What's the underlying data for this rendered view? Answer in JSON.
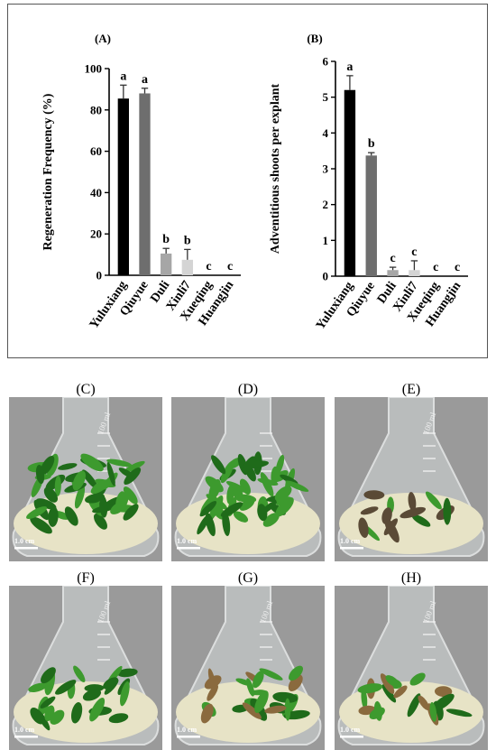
{
  "chart_data": [
    {
      "type": "bar",
      "panel_label": "(A)",
      "categories": [
        "Yuluxiang",
        "Qiuyue",
        "Duli",
        "Xinli7",
        "Xueqing",
        "Huangjin"
      ],
      "values": [
        85.5,
        88,
        10.5,
        7.5,
        0,
        0
      ],
      "errors": [
        6.5,
        2.5,
        2.5,
        5,
        0,
        0
      ],
      "letters": [
        "a",
        "a",
        "b",
        "b",
        "c",
        "c"
      ],
      "colors": [
        "#000000",
        "#6e6e6e",
        "#a6a6a6",
        "#d4d4d4",
        "#d4d4d4",
        "#d4d4d4"
      ],
      "title": "",
      "xlabel": "",
      "ylabel": "Regeneration Frequency (%)",
      "ylim": [
        0,
        100
      ],
      "yticks": [
        "0",
        "20",
        "40",
        "60",
        "80",
        "100"
      ]
    },
    {
      "type": "bar",
      "panel_label": "(B)",
      "categories": [
        "Yuluxiang",
        "Qiuyue",
        "Duli",
        "Xinli7",
        "Xueqing",
        "Huangjin"
      ],
      "values": [
        5.2,
        3.37,
        0.17,
        0.17,
        0,
        0
      ],
      "errors": [
        0.4,
        0.08,
        0.08,
        0.26,
        0,
        0
      ],
      "letters": [
        "a",
        "b",
        "c",
        "c",
        "c",
        "c"
      ],
      "colors": [
        "#000000",
        "#6e6e6e",
        "#a6a6a6",
        "#d4d4d4",
        "#d4d4d4",
        "#d4d4d4"
      ],
      "title": "",
      "xlabel": "",
      "ylabel": "Adventitious shoots per explant",
      "ylim": [
        0,
        6
      ],
      "yticks": [
        "0",
        "1",
        "2",
        "3",
        "4",
        "5",
        "6"
      ]
    }
  ],
  "photos": [
    {
      "label": "(C)",
      "scale": "1.0 cm",
      "style": "dense",
      "flask_text": "100 ml"
    },
    {
      "label": "(D)",
      "scale": "1.0 cm",
      "style": "dense",
      "flask_text": ""
    },
    {
      "label": "(E)",
      "scale": "1.0 cm",
      "style": "sparse",
      "flask_text": "100 ml"
    },
    {
      "label": "(F)",
      "scale": "1.0 cm",
      "style": "medium",
      "flask_text": "100 ml"
    },
    {
      "label": "(G)",
      "scale": "1.0 cm",
      "style": "medium",
      "flask_text": "100 ml"
    },
    {
      "label": "(H)",
      "scale": "1.0 cm",
      "style": "brown",
      "flask_text": "100 ml"
    }
  ],
  "colors": {
    "leaf_green": "#3d9a2e",
    "leaf_dark": "#1f6b1a",
    "medium": "#e7e3c6",
    "background": "#9a9a9a",
    "callus_brown": "#8a6a3e"
  }
}
